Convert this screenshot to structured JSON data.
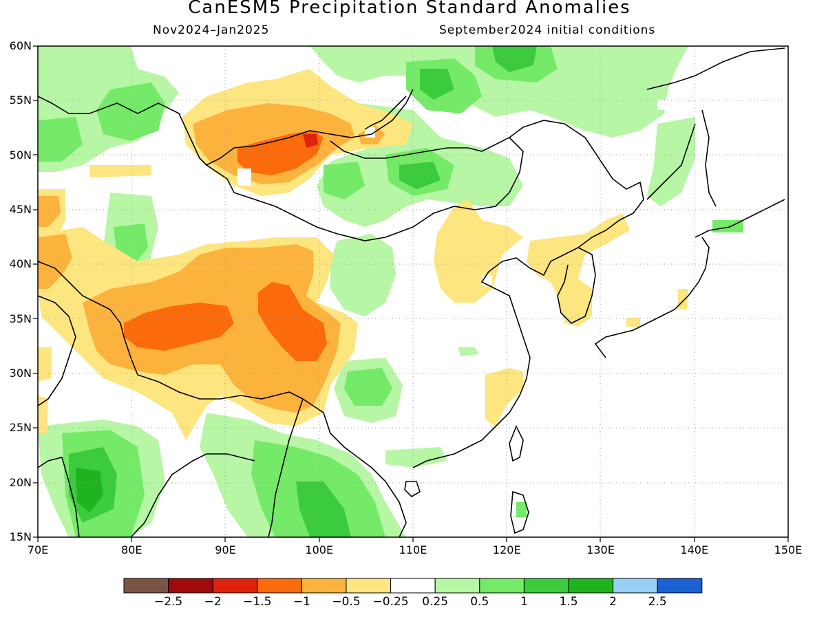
{
  "title": "CanESM5 Precipitation Standard Anomalies",
  "subtitle_left": "Nov2024–Jan2025",
  "subtitle_right": "September2024 initial conditions",
  "map": {
    "lon_range": [
      70,
      150
    ],
    "lat_range": [
      15,
      60
    ],
    "lat_ticks": [
      {
        "value": 60,
        "label": "60N"
      },
      {
        "value": 55,
        "label": "55N"
      },
      {
        "value": 50,
        "label": "50N"
      },
      {
        "value": 45,
        "label": "45N"
      },
      {
        "value": 40,
        "label": "40N"
      },
      {
        "value": 35,
        "label": "35N"
      },
      {
        "value": 30,
        "label": "30N"
      },
      {
        "value": 25,
        "label": "25N"
      },
      {
        "value": 20,
        "label": "20N"
      },
      {
        "value": 15,
        "label": "15N"
      }
    ],
    "lon_ticks": [
      {
        "value": 70,
        "label": "70E"
      },
      {
        "value": 80,
        "label": "80E"
      },
      {
        "value": 90,
        "label": "90E"
      },
      {
        "value": 100,
        "label": "100E"
      },
      {
        "value": 110,
        "label": "110E"
      },
      {
        "value": 120,
        "label": "120E"
      },
      {
        "value": 130,
        "label": "130E"
      },
      {
        "value": 140,
        "label": "140E"
      },
      {
        "value": 150,
        "label": "150E"
      }
    ]
  },
  "colorbar": {
    "colors": [
      "#7a5546",
      "#a10a0a",
      "#e0220c",
      "#fb6a0b",
      "#fcb33d",
      "#fde57f",
      "#ffffff",
      "#b6f6a5",
      "#74ea68",
      "#3ccb3c",
      "#1fb41f",
      "#97cff6",
      "#1b61d4"
    ],
    "labels": [
      "−2.5",
      "−2",
      "−1.5",
      "−1",
      "−0.5",
      "−0.25",
      "0.25",
      "0.5",
      "1",
      "1.5",
      "2",
      "2.5"
    ]
  },
  "colors": {
    "light_green": "#b6f6a5",
    "green": "#74ea68",
    "mid_green": "#3ccb3c",
    "dark_green": "#1fb41f",
    "light_yellow": "#fde57f",
    "light_orange": "#fcb33d",
    "orange": "#fb6a0b",
    "red_orange": "#e0220c"
  }
}
